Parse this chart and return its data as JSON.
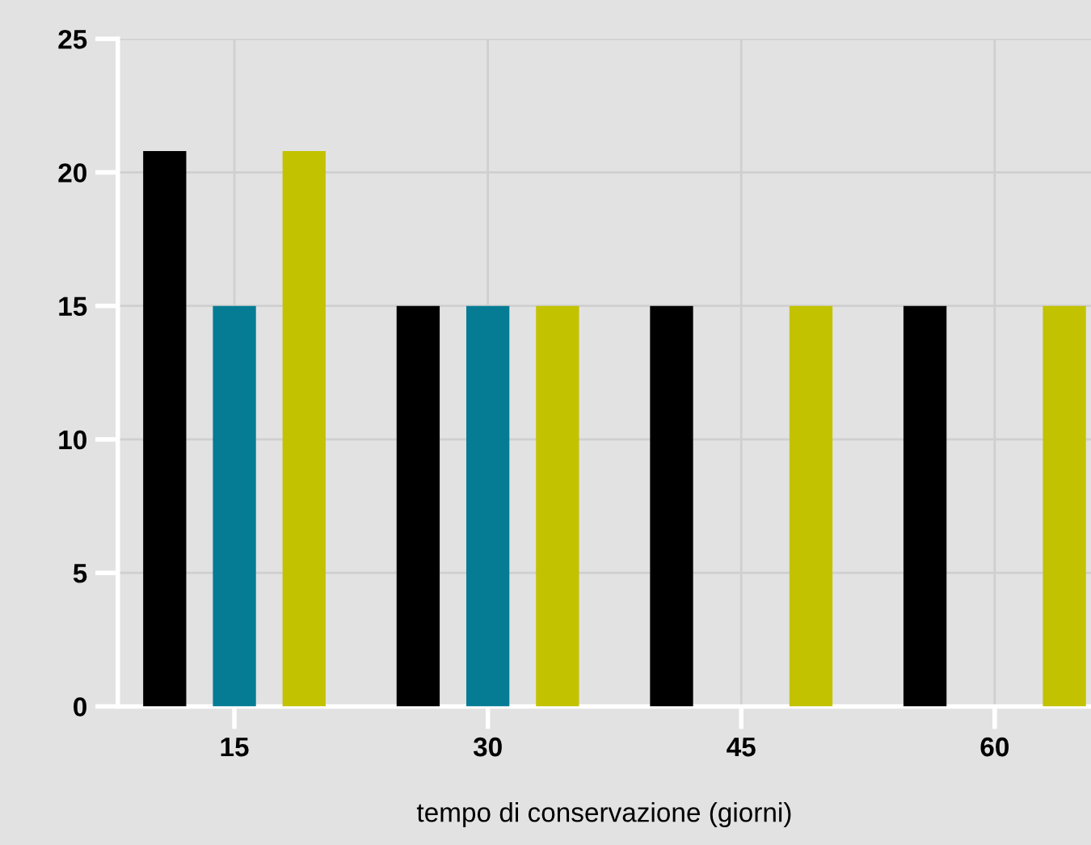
{
  "chart_data": {
    "type": "bar",
    "xlabel": "tempo di conservazione (giorni)",
    "categories": [
      "15",
      "30",
      "45",
      "60"
    ],
    "series": [
      {
        "color": "#000000",
        "values": [
          20.8,
          15,
          15,
          15
        ]
      },
      {
        "color": "#057c94",
        "values": [
          15,
          15,
          null,
          null
        ]
      },
      {
        "color": "#c2c200",
        "values": [
          20.8,
          15,
          15,
          15
        ]
      }
    ],
    "ylim": [
      0,
      25
    ],
    "yticks": [
      0,
      5,
      10,
      15,
      20,
      25
    ],
    "grid": true,
    "legend": false
  }
}
